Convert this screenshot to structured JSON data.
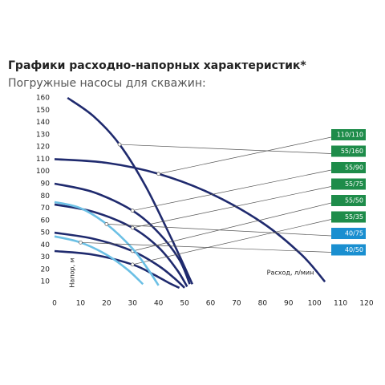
{
  "chart_data": {
    "type": "line",
    "title": "Графики расходно-напорных характеристик*",
    "subtitle": "Погружные насосы для скважин:",
    "x_label": "Расход, л/мин",
    "y_label": "Напор, м",
    "xlim": [
      0,
      120
    ],
    "xticks": [
      0,
      10,
      20,
      30,
      40,
      50,
      60,
      70,
      80,
      90,
      100,
      110,
      120
    ],
    "ylim": [
      0,
      160
    ],
    "yticks": [
      10,
      20,
      30,
      40,
      50,
      60,
      70,
      80,
      90,
      100,
      110,
      120,
      130,
      140,
      150,
      160
    ],
    "series": [
      {
        "name": "110/110",
        "color": "#1f2a6e",
        "label_color": "#1e8c4a",
        "x": [
          0,
          20,
          40,
          60,
          80,
          95,
          104
        ],
        "values": [
          110,
          107,
          98,
          82,
          58,
          32,
          10
        ]
      },
      {
        "name": "55/160",
        "color": "#1f2a6e",
        "label_color": "#1e8c4a",
        "x": [
          5,
          15,
          25,
          35,
          45,
          53
        ],
        "values": [
          160,
          145,
          122,
          88,
          45,
          8
        ]
      },
      {
        "name": "55/90",
        "color": "#1f2a6e",
        "label_color": "#1e8c4a",
        "x": [
          0,
          15,
          30,
          40,
          48,
          52
        ],
        "values": [
          90,
          83,
          68,
          50,
          28,
          8
        ]
      },
      {
        "name": "55/75",
        "color": "#1f2a6e",
        "label_color": "#1e8c4a",
        "x": [
          0,
          15,
          30,
          40,
          47,
          51
        ],
        "values": [
          73,
          67,
          54,
          38,
          20,
          6
        ]
      },
      {
        "name": "55/50",
        "color": "#1f2a6e",
        "label_color": "#1e8c4a",
        "x": [
          0,
          15,
          30,
          40,
          46,
          50
        ],
        "values": [
          50,
          45,
          35,
          23,
          13,
          5
        ]
      },
      {
        "name": "55/35",
        "color": "#1f2a6e",
        "label_color": "#1e8c4a",
        "x": [
          0,
          15,
          30,
          38,
          44,
          48
        ],
        "values": [
          35,
          32,
          24,
          16,
          9,
          5
        ]
      },
      {
        "name": "40/75",
        "color": "#6cc0e5",
        "label_color": "#1a8fd0",
        "x": [
          0,
          10,
          20,
          30,
          36,
          40
        ],
        "values": [
          75,
          70,
          57,
          37,
          20,
          7
        ]
      },
      {
        "name": "40/50",
        "color": "#6cc0e5",
        "label_color": "#1a8fd0",
        "x": [
          0,
          10,
          20,
          28,
          34
        ],
        "values": [
          47,
          42,
          32,
          20,
          8
        ]
      }
    ]
  }
}
